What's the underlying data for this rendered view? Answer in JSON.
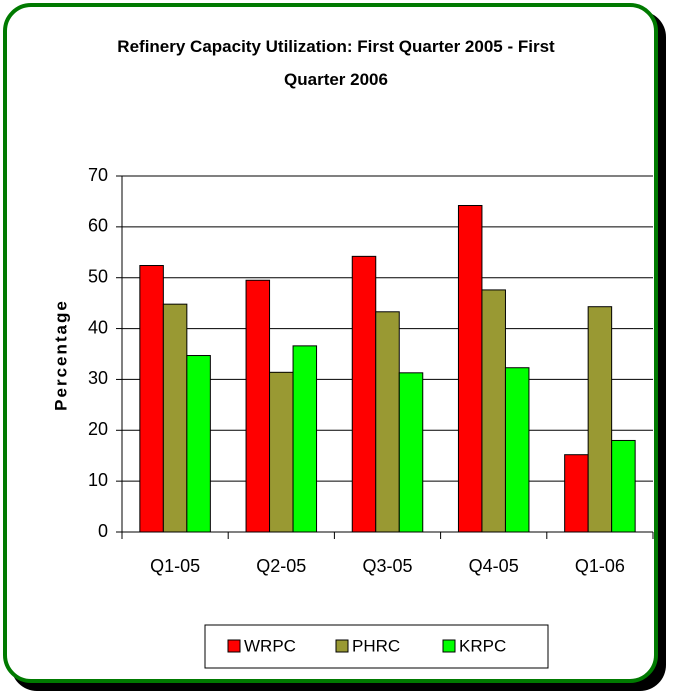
{
  "chart_data": {
    "type": "bar",
    "title": "Refinery Capacity Utilization: First Quarter 2005 - First Quarter 2006",
    "y_label": "Percentage",
    "categories": [
      "Q1-05",
      "Q2-05",
      "Q3-05",
      "Q4-05",
      "Q1-06"
    ],
    "series": [
      {
        "name": "WRPC",
        "color": "#ff0000",
        "values": [
          52.4,
          49.5,
          54.2,
          64.2,
          15.2
        ]
      },
      {
        "name": "PHRC",
        "color": "#999933",
        "values": [
          44.8,
          31.4,
          43.3,
          47.6,
          44.3
        ]
      },
      {
        "name": "KRPC",
        "color": "#00ff00",
        "values": [
          34.7,
          36.6,
          31.3,
          32.3,
          18.0
        ]
      }
    ],
    "ylim": [
      0,
      70
    ],
    "yticks": [
      0,
      10,
      20,
      30,
      40,
      50,
      60,
      70
    ],
    "grid": true,
    "legend": "bottom"
  }
}
